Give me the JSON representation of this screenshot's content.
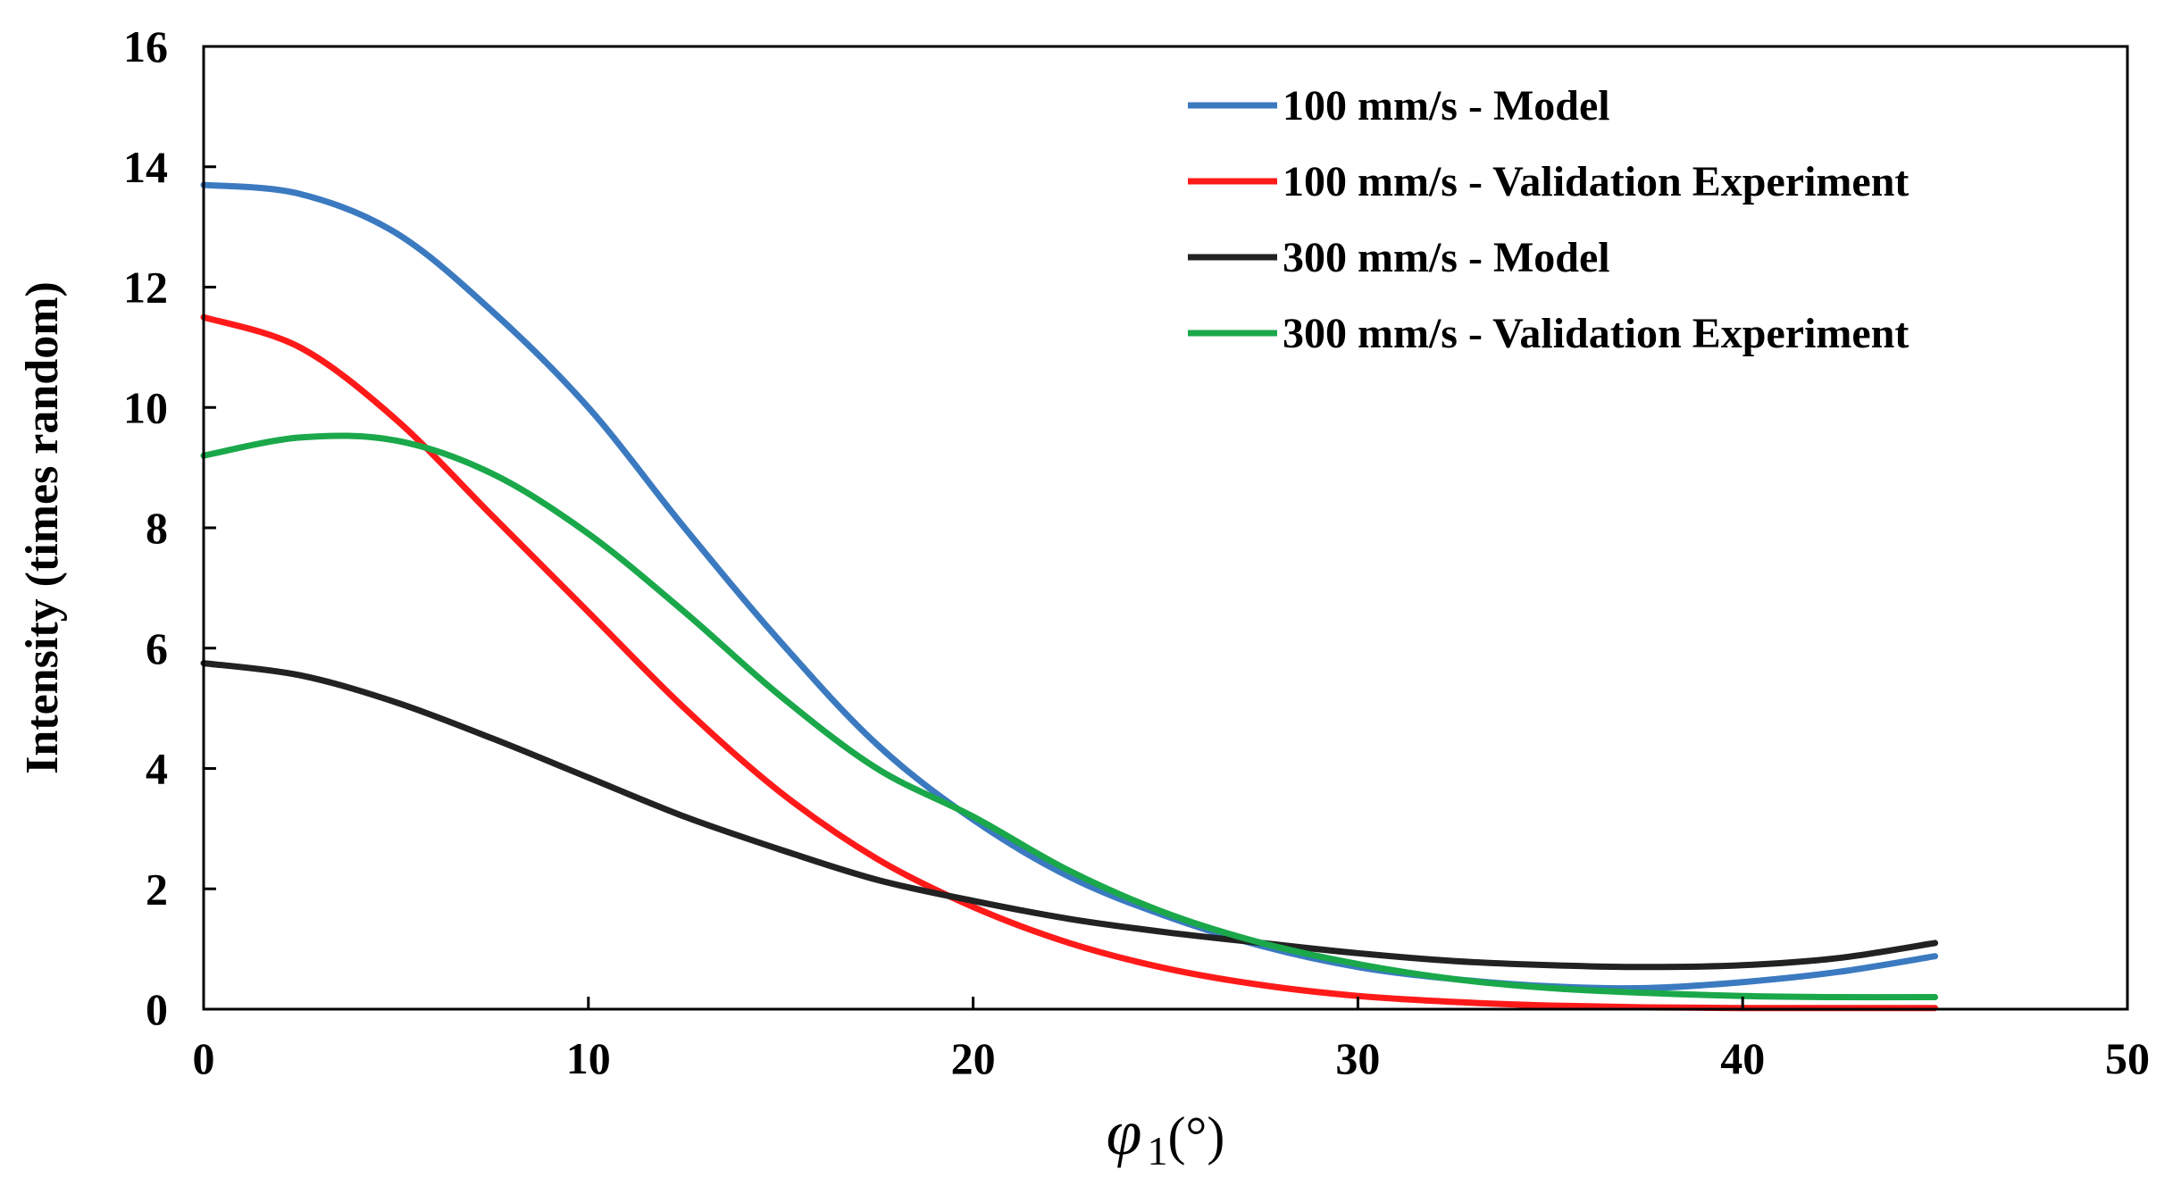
{
  "chart_data": {
    "type": "line",
    "xlabel": {
      "symbol": "φ",
      "sub": "1",
      "unit": "(°)"
    },
    "ylabel": "Intensity (times random)",
    "xlim": [
      0,
      50
    ],
    "ylim": [
      0,
      16
    ],
    "x_ticks": [
      0,
      10,
      20,
      30,
      40,
      50
    ],
    "y_ticks": [
      0,
      2,
      4,
      6,
      8,
      10,
      12,
      14,
      16
    ],
    "grid": false,
    "legend_position": "top-right",
    "x": [
      0,
      2.5,
      5,
      7.5,
      10,
      12.5,
      15,
      17.5,
      20,
      22.5,
      25,
      27.5,
      30,
      32.5,
      35,
      37.5,
      40,
      42.5,
      45
    ],
    "series": [
      {
        "name": "100 mm/s - Model",
        "color": "#3b7ac0",
        "values": [
          13.7,
          13.55,
          12.9,
          11.6,
          10.0,
          8.0,
          6.1,
          4.4,
          3.15,
          2.2,
          1.55,
          1.05,
          0.7,
          0.5,
          0.38,
          0.35,
          0.45,
          0.62,
          0.88
        ]
      },
      {
        "name": "100 mm/s - Validation Experiment",
        "color": "#ff1a1a",
        "values": [
          11.5,
          11.0,
          9.8,
          8.2,
          6.6,
          5.0,
          3.6,
          2.5,
          1.7,
          1.1,
          0.68,
          0.4,
          0.22,
          0.12,
          0.06,
          0.03,
          0.02,
          0.02,
          0.02
        ]
      },
      {
        "name": "300 mm/s - Model",
        "color": "#222222",
        "values": [
          5.75,
          5.55,
          5.1,
          4.5,
          3.85,
          3.2,
          2.65,
          2.15,
          1.8,
          1.5,
          1.28,
          1.1,
          0.93,
          0.8,
          0.73,
          0.7,
          0.73,
          0.85,
          1.1
        ]
      },
      {
        "name": "300 mm/s - Validation Experiment",
        "color": "#1aa84a",
        "values": [
          9.2,
          9.5,
          9.45,
          8.9,
          7.9,
          6.6,
          5.2,
          4.0,
          3.2,
          2.3,
          1.6,
          1.1,
          0.75,
          0.5,
          0.35,
          0.27,
          0.22,
          0.2,
          0.2
        ]
      }
    ]
  }
}
